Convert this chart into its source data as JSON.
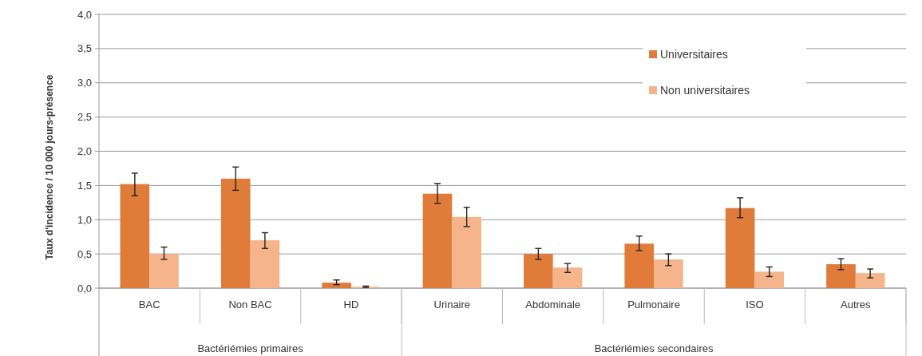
{
  "chart_data": {
    "type": "bar",
    "ylabel": "Taux d'incidence  / 10 000 jours-présence",
    "categories": [
      "BAC",
      "Non BAC",
      "HD",
      "Urinaire",
      "Abdominale",
      "Pulmonaire",
      "ISO",
      "Autres"
    ],
    "series": [
      {
        "name": "Universitaires",
        "color": "#e07b39",
        "values": [
          1.52,
          1.6,
          0.08,
          1.38,
          0.5,
          0.65,
          1.17,
          0.35
        ],
        "errors": [
          [
            1.35,
            1.68
          ],
          [
            1.43,
            1.77
          ],
          [
            0.05,
            0.12
          ],
          [
            1.24,
            1.53
          ],
          [
            0.42,
            0.58
          ],
          [
            0.55,
            0.76
          ],
          [
            1.03,
            1.32
          ],
          [
            0.27,
            0.43
          ]
        ]
      },
      {
        "name": "Non universitaires",
        "color": "#f5b48a",
        "values": [
          0.5,
          0.7,
          0.02,
          1.04,
          0.3,
          0.42,
          0.24,
          0.22
        ],
        "errors": [
          [
            0.42,
            0.6
          ],
          [
            0.58,
            0.81
          ],
          [
            0.01,
            0.03
          ],
          [
            0.9,
            1.18
          ],
          [
            0.23,
            0.36
          ],
          [
            0.33,
            0.5
          ],
          [
            0.17,
            0.31
          ],
          [
            0.15,
            0.28
          ]
        ]
      }
    ],
    "annotations": [
      "Bactériémies primaires",
      "Bactériémies secondaires"
    ],
    "ylim": [
      0,
      4
    ],
    "yticks": [
      {
        "value": 0,
        "label": "0,0"
      },
      {
        "value": 0.5,
        "label": "0,5"
      },
      {
        "value": 1,
        "label": "1,0"
      },
      {
        "value": 1.5,
        "label": "1,5"
      },
      {
        "value": 2,
        "label": "2,0"
      },
      {
        "value": 2.5,
        "label": "2,5"
      },
      {
        "value": 3,
        "label": "3,0"
      },
      {
        "value": 3.5,
        "label": "3,5"
      },
      {
        "value": 4,
        "label": "4,0"
      }
    ],
    "grid": "y",
    "legend": "top right"
  }
}
